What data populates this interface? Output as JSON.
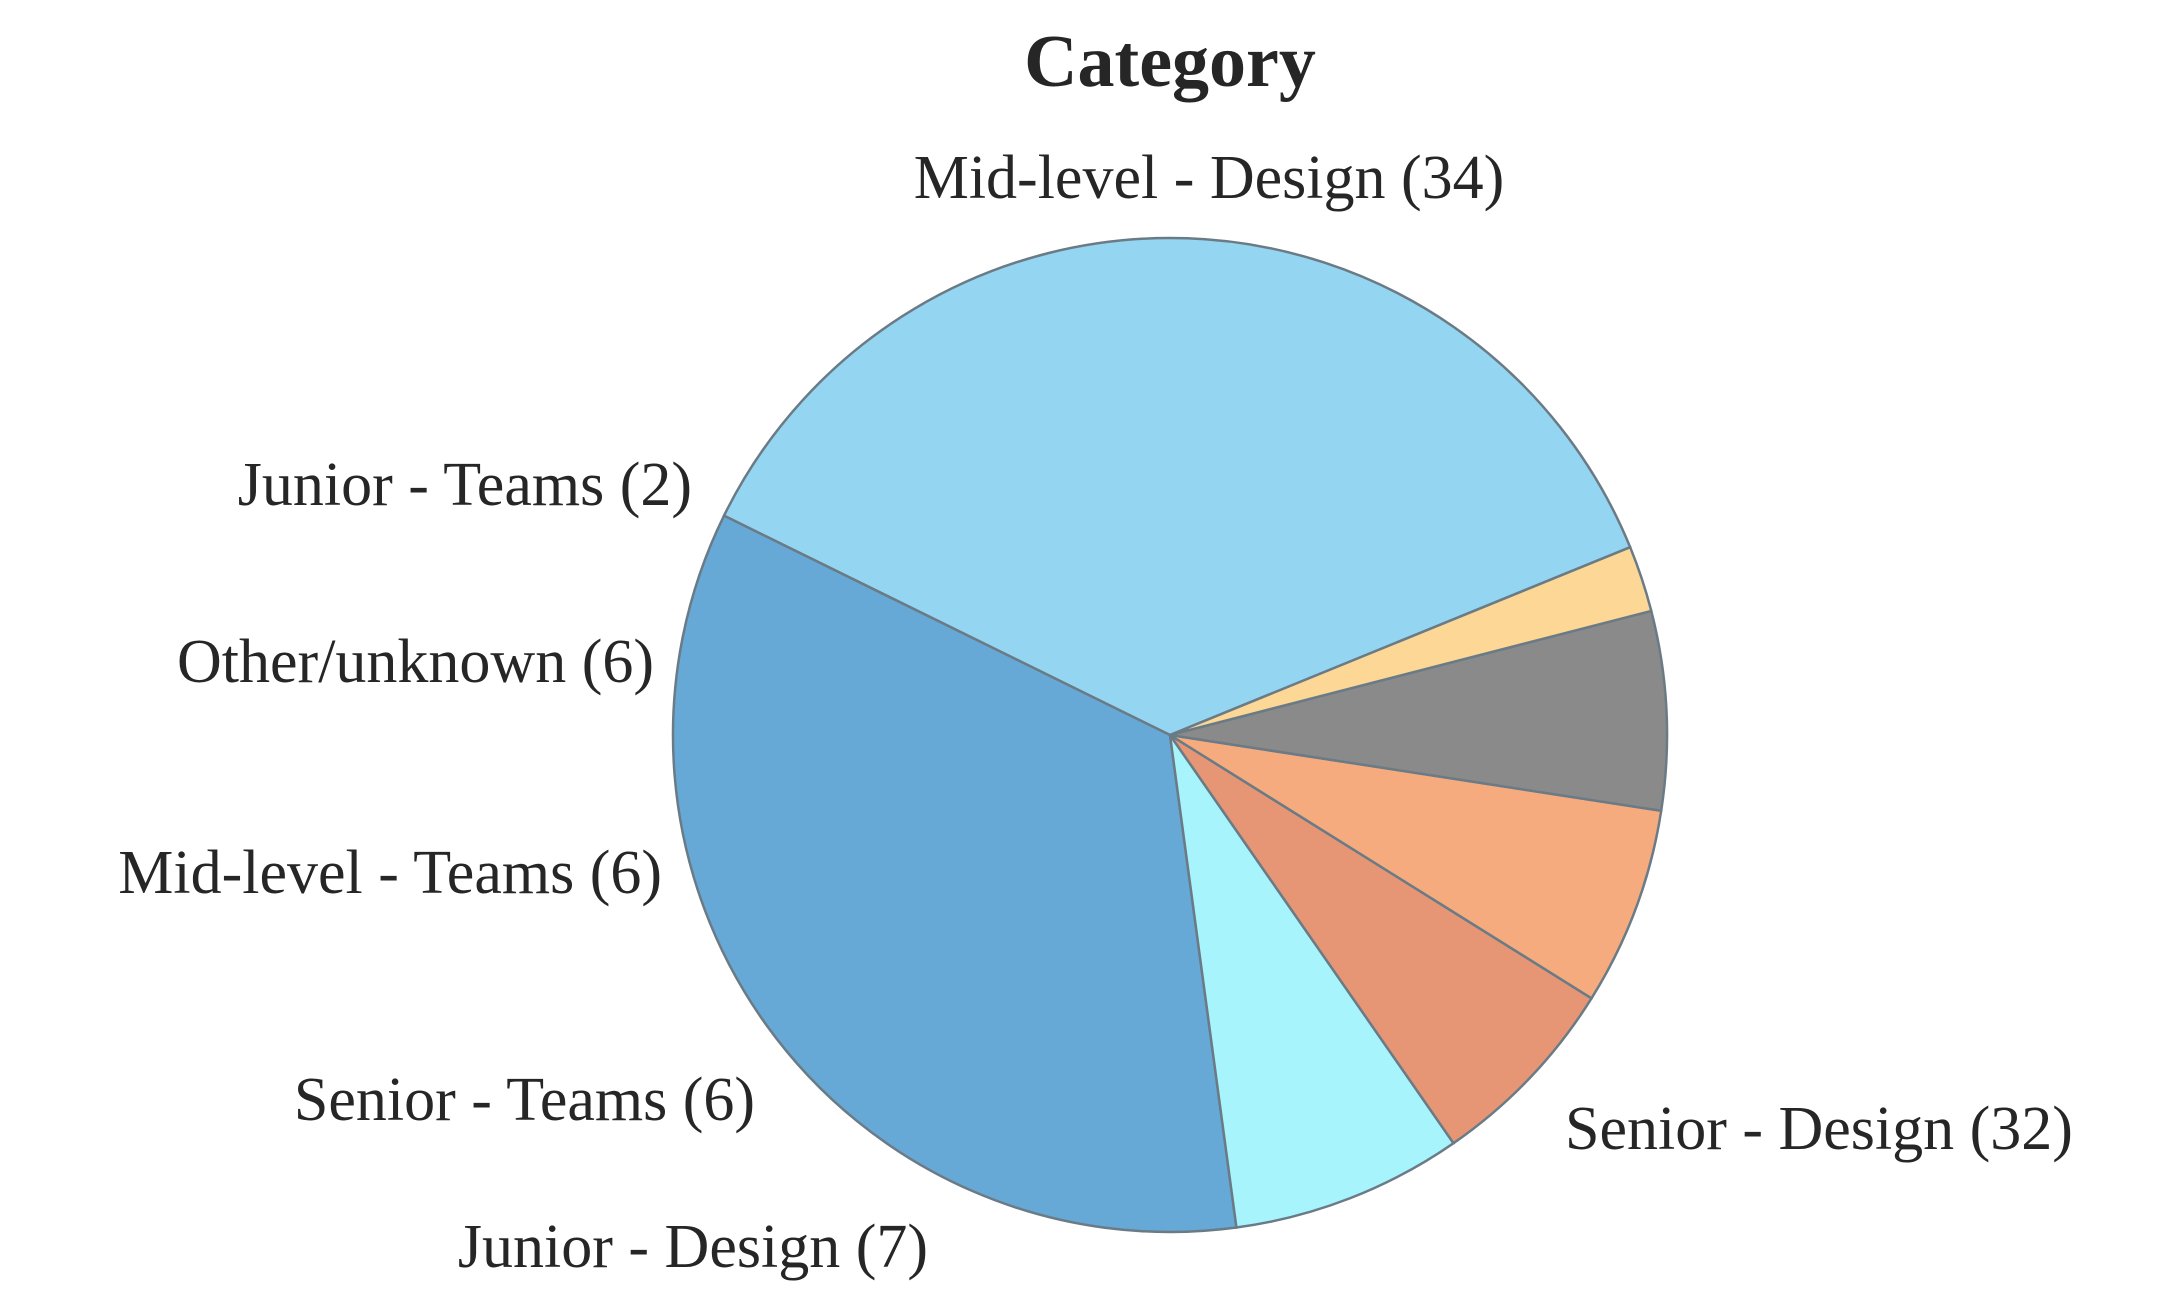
{
  "chart_data": {
    "type": "pie",
    "title": "Category",
    "slices": [
      {
        "label": "Mid-level - Design",
        "value": 34,
        "color": "#94d5f2"
      },
      {
        "label": "Senior - Design",
        "value": 32,
        "color": "#66a9d6"
      },
      {
        "label": "Junior - Design",
        "value": 7,
        "color": "#a8f4fd"
      },
      {
        "label": "Senior - Teams",
        "value": 6,
        "color": "#e69675"
      },
      {
        "label": "Mid-level - Teams",
        "value": 6,
        "color": "#f6ab7e"
      },
      {
        "label": "Other/unknown",
        "value": 6,
        "color": "#8a8a8a"
      },
      {
        "label": "Junior - Teams",
        "value": 2,
        "color": "#fcd795"
      }
    ],
    "label_format": "{label} ({value})",
    "legend": "none"
  }
}
